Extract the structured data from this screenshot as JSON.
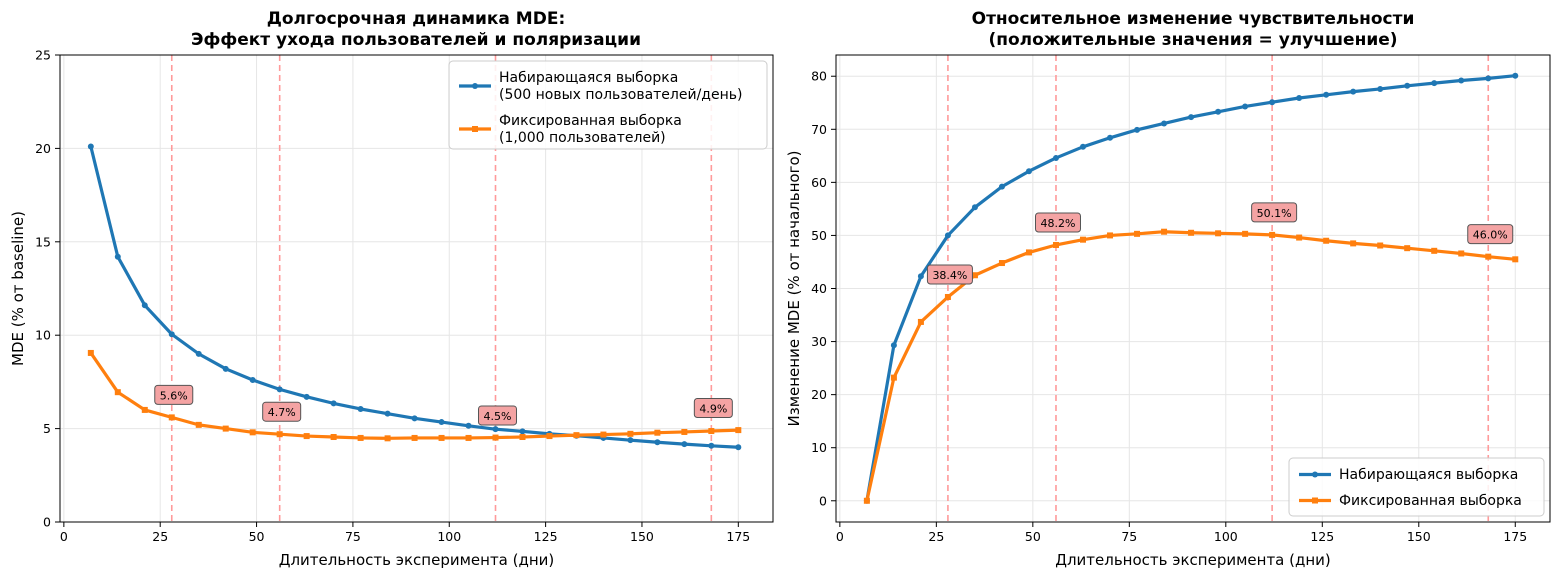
{
  "colors": {
    "series1": "#1f77b4",
    "series2": "#ff7f0e",
    "vline": "#ff9a9a",
    "annotation_bg": "#f4a3a3",
    "grid": "#e6e6e6"
  },
  "chart_data": [
    {
      "type": "line",
      "title": [
        "Долгосрочная динамика MDE:",
        "Эффект ухода пользователей и поляризации"
      ],
      "xlabel": "Длительность эксперимента (дни)",
      "ylabel": "MDE (% от baseline)",
      "xlim": [
        -1,
        184
      ],
      "ylim": [
        0,
        25
      ],
      "xticks": [
        0,
        25,
        50,
        75,
        100,
        125,
        150,
        175
      ],
      "yticks": [
        0,
        5,
        10,
        15,
        20,
        25
      ],
      "grid": true,
      "legend_position": "top-right",
      "x": [
        7,
        14,
        21,
        28,
        35,
        42,
        49,
        56,
        63,
        70,
        77,
        84,
        91,
        98,
        105,
        112,
        119,
        126,
        133,
        140,
        147,
        154,
        161,
        168,
        175
      ],
      "series": [
        {
          "name": [
            "Набирающаяся выборка",
            "(500 новых пользователей/день)"
          ],
          "color": "#1f77b4",
          "marker": "circle",
          "values": [
            20.1,
            14.2,
            11.6,
            10.05,
            9.0,
            8.2,
            7.6,
            7.1,
            6.7,
            6.35,
            6.05,
            5.8,
            5.55,
            5.35,
            5.15,
            4.97,
            4.85,
            4.72,
            4.62,
            4.5,
            4.38,
            4.27,
            4.17,
            4.08,
            4.0
          ]
        },
        {
          "name": [
            "Фиксированная выборка",
            "(1,000 пользователей)"
          ],
          "color": "#ff7f0e",
          "marker": "square",
          "values": [
            9.05,
            6.95,
            6.0,
            5.6,
            5.2,
            5.0,
            4.8,
            4.7,
            4.6,
            4.55,
            4.5,
            4.48,
            4.5,
            4.5,
            4.5,
            4.52,
            4.55,
            4.6,
            4.65,
            4.68,
            4.72,
            4.78,
            4.82,
            4.87,
            4.92
          ]
        }
      ],
      "vlines": [
        28,
        56,
        112,
        168
      ],
      "annotations": [
        {
          "x": 28,
          "y": 5.6,
          "text": "5.6%"
        },
        {
          "x": 56,
          "y": 4.7,
          "text": "4.7%"
        },
        {
          "x": 112,
          "y": 4.5,
          "text": "4.5%"
        },
        {
          "x": 168,
          "y": 4.9,
          "text": "4.9%"
        }
      ]
    },
    {
      "type": "line",
      "title": [
        "Относительное изменение чувствительности",
        "(положительные значения = улучшение)"
      ],
      "xlabel": "Длительность эксперимента (дни)",
      "ylabel": "Изменение MDE (% от начального)",
      "xlim": [
        -1,
        184
      ],
      "ylim": [
        -4,
        84
      ],
      "xticks": [
        0,
        25,
        50,
        75,
        100,
        125,
        150,
        175
      ],
      "yticks": [
        0,
        10,
        20,
        30,
        40,
        50,
        60,
        70,
        80
      ],
      "grid": true,
      "legend_position": "bottom-right",
      "x": [
        7,
        14,
        21,
        28,
        35,
        42,
        49,
        56,
        63,
        70,
        77,
        84,
        91,
        98,
        105,
        112,
        119,
        126,
        133,
        140,
        147,
        154,
        161,
        168,
        175
      ],
      "series": [
        {
          "name": [
            "Набирающаяся выборка"
          ],
          "color": "#1f77b4",
          "marker": "circle",
          "values": [
            0,
            29.3,
            42.3,
            50.0,
            55.3,
            59.2,
            62.1,
            64.6,
            66.7,
            68.4,
            69.9,
            71.1,
            72.3,
            73.3,
            74.3,
            75.1,
            75.9,
            76.5,
            77.1,
            77.6,
            78.2,
            78.7,
            79.2,
            79.6,
            80.1
          ]
        },
        {
          "name": [
            "Фиксированная выборка"
          ],
          "color": "#ff7f0e",
          "marker": "square",
          "values": [
            0,
            23.2,
            33.7,
            38.4,
            42.5,
            44.8,
            46.8,
            48.2,
            49.2,
            50.0,
            50.3,
            50.7,
            50.5,
            50.4,
            50.3,
            50.1,
            49.6,
            49.0,
            48.5,
            48.1,
            47.6,
            47.1,
            46.6,
            46.0,
            45.5
          ]
        }
      ],
      "vlines": [
        28,
        56,
        112,
        168
      ],
      "annotations": [
        {
          "x": 28,
          "y": 38.4,
          "text": "38.4%"
        },
        {
          "x": 56,
          "y": 48.2,
          "text": "48.2%"
        },
        {
          "x": 112,
          "y": 50.1,
          "text": "50.1%"
        },
        {
          "x": 168,
          "y": 46.0,
          "text": "46.0%"
        }
      ]
    }
  ]
}
